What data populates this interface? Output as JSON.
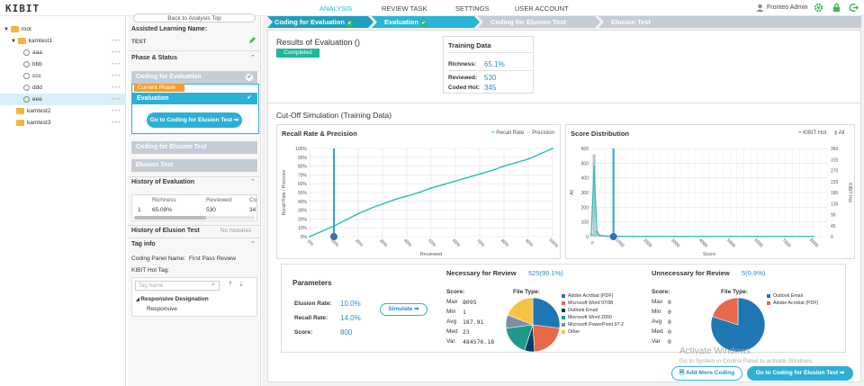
{
  "topbar": {
    "logo": "KIBIT",
    "nav": [
      {
        "label": "ANALYSIS",
        "active": true
      },
      {
        "label": "REVIEW TASK",
        "active": false
      },
      {
        "label": "SETTINGS",
        "active": false
      },
      {
        "label": "USER ACCOUNT",
        "active": false
      }
    ],
    "user": "Fronteo Admin"
  },
  "tree": {
    "root": "root",
    "items": [
      {
        "label": "kamtest1",
        "type": "folder"
      },
      {
        "label": "aaa",
        "type": "task"
      },
      {
        "label": "bbb",
        "type": "task"
      },
      {
        "label": "ccc",
        "type": "task"
      },
      {
        "label": "ddd",
        "type": "task"
      },
      {
        "label": "eee",
        "type": "task"
      },
      {
        "label": "kamtest2",
        "type": "folder"
      },
      {
        "label": "kamtest3",
        "type": "folder"
      }
    ],
    "row_menu": "•••"
  },
  "mid": {
    "back": "Back to Analysis Top",
    "assisted_title": "Assisted Learning Name:",
    "assisted_name": "TEST",
    "phase_title": "Phase & Status",
    "step1": "Coding for Evaluation",
    "current_phase": "Current Phase",
    "step2": "Evaluation",
    "go_btn": "Go to Coding for Elusion Test ➡",
    "step3": "Coding for Elusion Test",
    "step4": "Elusion Test",
    "history_eval_title": "History of Evaluation",
    "history_cols": [
      "Richness",
      "Reviewed",
      "Co"
    ],
    "history_row": [
      "1",
      "65.09%",
      "530",
      "34"
    ],
    "history_elusion_title": "History of Elusion Test",
    "no_histories": "No histories",
    "tag_title": "Tag info",
    "coding_panel_label": "Coding Panel Name:",
    "coding_panel_value": "First Pass Review",
    "hot_tag_label": "KIBIT Hot Tag:",
    "tag_placeholder": "Tag Name",
    "responsive_designation": "Responsive Designation",
    "responsive": "Responsive"
  },
  "progress": [
    "Coding for Evaluation",
    "Evaluation",
    "Coding for Elusion Test",
    "Elusion Test"
  ],
  "results": {
    "title": "Results of Evaluation ()",
    "badge": "Completed",
    "training_title": "Training Data",
    "richness_label": "Richness:",
    "richness": "65.1%",
    "reviewed_label": "Reviewed:",
    "reviewed": "530",
    "codedhot_label": "Coded Hot:",
    "codedhot": "345"
  },
  "cutoff": {
    "title": "Cut-Off Simulation (Training Data)",
    "recall_title": "Recall Rate & Precision",
    "legend_recall": "Recall Rate",
    "legend_precision": "Precision",
    "recall_ylabel": "Recall Rate / Precision",
    "recall_xlabel": "Reviewed",
    "score_title": "Score Distribution",
    "legend_kibit": "KIBIT Hot",
    "legend_all": "All",
    "score_ylabel_left": "All",
    "score_ylabel_right": "KIBIT Hot",
    "score_xlabel": "Score"
  },
  "params": {
    "title": "Parameters",
    "elusion_label": "Elusion Rate:",
    "elusion": "10.0%",
    "recall_label": "Recall Rate:",
    "recall": "14.0%",
    "score_label": "Score:",
    "score": "800",
    "simulate": "Simulate ➡"
  },
  "necessary": {
    "title": "Necessary for Review",
    "count": "525(99.1%)",
    "score_label": "Score:",
    "stats": [
      [
        "Max",
        "8095"
      ],
      [
        "Min",
        "1"
      ],
      [
        "Avg",
        "187.91"
      ],
      [
        "Med",
        "23"
      ],
      [
        "Var",
        "484576.18"
      ]
    ],
    "filetype_label": "File Type:",
    "legend": [
      {
        "label": "Adobe Acrobat (PDF)",
        "color": "#1f77b4"
      },
      {
        "label": "Microsoft Word 97/98",
        "color": "#e8684a"
      },
      {
        "label": "Outlook Email",
        "color": "#0a3d62"
      },
      {
        "label": "Microsoft Word 2000",
        "color": "#1f9a8a"
      },
      {
        "label": "Microsoft PowerPoint 97-2",
        "color": "#7a8fa6"
      },
      {
        "label": "Other",
        "color": "#f5c242"
      }
    ]
  },
  "unnecessary": {
    "title": "Unnecessary for Review",
    "count": "5(0.9%)",
    "score_label": "Score:",
    "stats": [
      [
        "Max",
        "0"
      ],
      [
        "Min",
        "0"
      ],
      [
        "Avg",
        "0"
      ],
      [
        "Med",
        "0"
      ],
      [
        "Var",
        "0"
      ]
    ],
    "filetype_label": "File Type:",
    "legend": [
      {
        "label": "Outlook Email",
        "color": "#1f77b4"
      },
      {
        "label": "Adobe Acrobat (PDF)",
        "color": "#e8684a"
      }
    ]
  },
  "footer": {
    "add_more": "Add More Coding",
    "go_elusion": "Go to Coding for Elusion Test ➡",
    "watermark1": "Activate Windows",
    "watermark2": "Go to System in Control Panel to activate Windows."
  },
  "chart_data": [
    {
      "type": "line",
      "title": "Recall Rate & Precision",
      "xlabel": "Reviewed",
      "ylabel": "Recall Rate / Precision",
      "x_ticks": [
        "0%",
        "10%",
        "20%",
        "30%",
        "40%",
        "50%",
        "60%",
        "70%",
        "80%",
        "90%",
        "100%"
      ],
      "y_ticks": [
        "0%",
        "10%",
        "20%",
        "30%",
        "40%",
        "50%",
        "60%",
        "70%",
        "80%",
        "90%",
        "100%"
      ],
      "ylim": [
        0,
        100
      ],
      "series": [
        {
          "name": "Recall Rate",
          "x": [
            0,
            5,
            10,
            15,
            20,
            25,
            30,
            35,
            40,
            45,
            50,
            55,
            60,
            65,
            70,
            75,
            80,
            85,
            90,
            95,
            100
          ],
          "y": [
            0,
            6,
            12,
            19,
            26,
            32,
            37,
            42,
            46,
            50,
            55,
            59,
            63,
            67,
            71,
            75,
            80,
            84,
            88,
            94,
            100
          ]
        }
      ],
      "cutoff_x": 10
    },
    {
      "type": "bar",
      "title": "Score Distribution",
      "xlabel": "Score",
      "x_ticks": [
        "0",
        "1000",
        "2000",
        "3000",
        "4000",
        "5000",
        "6000",
        "7000",
        "8000"
      ],
      "y_left_ticks": [
        "0",
        "100",
        "200",
        "300",
        "400",
        "500",
        "600"
      ],
      "y_right_ticks": [
        "0",
        "45",
        "90",
        "135",
        "180",
        "225",
        "270",
        "315",
        "360"
      ],
      "ylim": [
        0,
        600
      ],
      "series": [
        {
          "name": "All",
          "x": [
            0,
            100,
            200,
            300,
            400,
            500,
            600,
            700,
            800,
            900,
            1000,
            1500,
            2000,
            3000,
            4000,
            5000,
            6000,
            7000,
            8000
          ],
          "y": [
            20,
            560,
            40,
            10,
            6,
            4,
            3,
            3,
            2,
            2,
            2,
            1,
            1,
            1,
            1,
            1,
            1,
            1,
            1
          ]
        },
        {
          "name": "KIBIT Hot",
          "x": [
            0,
            100,
            200,
            300,
            400,
            500,
            600,
            700,
            800,
            900,
            1000,
            1500,
            2000,
            3000,
            4000,
            5000,
            6000,
            7000,
            8000
          ],
          "y": [
            10,
            300,
            20,
            5,
            4,
            3,
            2,
            2,
            2,
            2,
            1,
            1,
            1,
            1,
            1,
            1,
            1,
            1,
            1
          ]
        }
      ],
      "cutoff_x": 800
    },
    {
      "type": "pie",
      "title": "",
      "labels": [
        "Adobe Acrobat (PDF)",
        "Microsoft Word 97/98",
        "Outlook Email",
        "Microsoft Word 2000",
        "Microsoft PowerPoint 97-2",
        "Other"
      ],
      "values": [
        27,
        22,
        6,
        18,
        8,
        19
      ]
    },
    {
      "type": "pie",
      "title": "",
      "labels": [
        "Outlook Email",
        "Adobe Acrobat (PDF)"
      ],
      "values": [
        80,
        20
      ]
    }
  ]
}
